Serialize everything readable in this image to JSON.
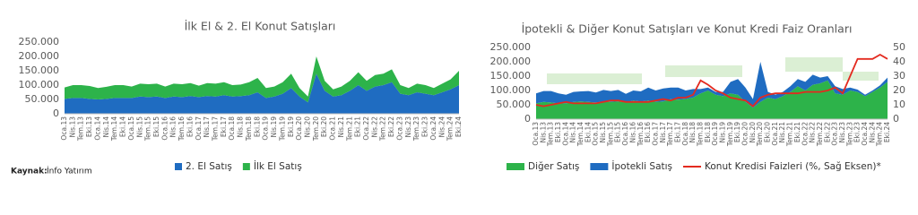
{
  "chart_data": [
    {
      "type": "area",
      "title": "İlk El & 2. El Konut Satışları",
      "stacked": true,
      "grid": false,
      "legend": "bottom",
      "categories": [
        "Oca.13",
        "Nis.13",
        "Tem.13",
        "Eki.13",
        "Oca.14",
        "Nis.14",
        "Tem.14",
        "Eki.14",
        "Oca.15",
        "Nis.15",
        "Tem.15",
        "Eki.15",
        "Oca.16",
        "Nis.16",
        "Tem.16",
        "Eki.16",
        "Oca.17",
        "Nis.17",
        "Tem.17",
        "Eki.17",
        "Oca.18",
        "Nis.18",
        "Tem.18",
        "Eki.18",
        "Oca.19",
        "Nis.19",
        "Tem.19",
        "Eki.19",
        "Oca.20",
        "Nis.20",
        "Tem.20",
        "Eki.20",
        "Oca.21",
        "Nis.21",
        "Tem.21",
        "Eki.21",
        "Oca.22",
        "Nis.22",
        "Tem.22",
        "Eki.22",
        "Oca.23",
        "Nis.23",
        "Tem.23",
        "Eki.23",
        "Oca.24",
        "Nis.24",
        "Tem.24",
        "Eki.24"
      ],
      "ylim": [
        0,
        250000
      ],
      "yticks": [
        0,
        {
          "value": 50000,
          "label": "50.000"
        },
        {
          "value": 100000,
          "label": "100.000"
        },
        {
          "value": 150000,
          "label": "150.000"
        },
        {
          "value": 200000,
          "label": "200.000"
        },
        {
          "value": 250000,
          "label": "250.000"
        }
      ],
      "series": [
        {
          "name": "2. El Satış",
          "color": "#1f6cc1",
          "values": [
            52000,
            55000,
            55000,
            52000,
            50000,
            52000,
            55000,
            55000,
            55000,
            60000,
            58000,
            60000,
            55000,
            60000,
            58000,
            62000,
            58000,
            62000,
            60000,
            65000,
            60000,
            62000,
            65000,
            75000,
            55000,
            60000,
            70000,
            90000,
            60000,
            40000,
            140000,
            80000,
            60000,
            65000,
            80000,
            100000,
            80000,
            95000,
            100000,
            110000,
            70000,
            65000,
            75000,
            70000,
            65000,
            75000,
            85000,
            100000
          ]
        },
        {
          "name": "İlk El Satış",
          "color": "#2db34a",
          "values": [
            40000,
            45000,
            45000,
            45000,
            40000,
            42000,
            45000,
            45000,
            40000,
            45000,
            45000,
            45000,
            40000,
            45000,
            45000,
            45000,
            40000,
            45000,
            45000,
            45000,
            40000,
            40000,
            45000,
            50000,
            35000,
            35000,
            40000,
            50000,
            30000,
            20000,
            60000,
            35000,
            25000,
            30000,
            35000,
            45000,
            35000,
            40000,
            40000,
            45000,
            30000,
            25000,
            30000,
            30000,
            25000,
            30000,
            35000,
            50000
          ]
        }
      ]
    },
    {
      "type": "area",
      "title": "İpotekli & Diğer Konut Satışları ve Konut Kredi Faiz Oranları",
      "stacked": true,
      "grid": false,
      "legend": "bottom",
      "categories": [
        "Oca.13",
        "Nis.13",
        "Tem.13",
        "Eki.13",
        "Oca.14",
        "Nis.14",
        "Tem.14",
        "Eki.14",
        "Oca.15",
        "Nis.15",
        "Tem.15",
        "Eki.15",
        "Oca.16",
        "Nis.16",
        "Tem.16",
        "Eki.16",
        "Oca.17",
        "Nis.17",
        "Tem.17",
        "Eki.17",
        "Oca.18",
        "Nis.18",
        "Tem.18",
        "Eki.18",
        "Oca.19",
        "Nis.19",
        "Tem.19",
        "Eki.19",
        "Oca.20",
        "Nis.20",
        "Tem.20",
        "Eki.20",
        "Oca.21",
        "Nis.21",
        "Tem.21",
        "Eki.21",
        "Oca.22",
        "Nis.22",
        "Tem.22",
        "Eki.22",
        "Oca.23",
        "Nis.23",
        "Tem.23",
        "Eki.23",
        "Oca.24",
        "Nis.24",
        "Tem.24",
        "Eki.24"
      ],
      "ylim": [
        0,
        250000
      ],
      "yticks": [
        0,
        {
          "value": 50000,
          "label": "50.000"
        },
        {
          "value": 100000,
          "label": "100.000"
        },
        {
          "value": 150000,
          "label": "150.000"
        },
        {
          "value": 200000,
          "label": "200.000"
        },
        {
          "value": 250000,
          "label": "250.000"
        }
      ],
      "y2lim": [
        0,
        50
      ],
      "y2ticks": [
        0,
        10,
        20,
        30,
        40,
        50
      ],
      "series": [
        {
          "name": "Diğer Satış",
          "color": "#2db34a",
          "values": [
            55000,
            60000,
            58000,
            55000,
            55000,
            60000,
            62000,
            60000,
            58000,
            62000,
            60000,
            62000,
            58000,
            65000,
            62000,
            65000,
            60000,
            62000,
            70000,
            68000,
            70000,
            75000,
            90000,
            100000,
            85000,
            80000,
            90000,
            85000,
            60000,
            40000,
            60000,
            75000,
            70000,
            80000,
            95000,
            115000,
            100000,
            120000,
            125000,
            135000,
            90000,
            85000,
            100000,
            95000,
            80000,
            95000,
            110000,
            130000
          ]
        },
        {
          "name": "İpotekli Satış",
          "color": "#1f6cc1",
          "values": [
            35000,
            38000,
            40000,
            35000,
            30000,
            35000,
            35000,
            38000,
            35000,
            40000,
            38000,
            40000,
            30000,
            35000,
            35000,
            45000,
            40000,
            45000,
            40000,
            42000,
            30000,
            30000,
            15000,
            10000,
            10000,
            15000,
            40000,
            55000,
            50000,
            30000,
            140000,
            20000,
            15000,
            15000,
            20000,
            25000,
            30000,
            35000,
            20000,
            15000,
            25000,
            20000,
            10000,
            8000,
            5000,
            5000,
            8000,
            15000
          ]
        },
        {
          "name": "Konut Kredisi Faizleri (%, Sağ Eksen)*",
          "color": "#e32a1f",
          "type": "line",
          "axis": "y2",
          "values": [
            10,
            9,
            10,
            11,
            12,
            11,
            11,
            11,
            11,
            12,
            13,
            13,
            12,
            12,
            12,
            12,
            13,
            14,
            13,
            15,
            15,
            17,
            27,
            24,
            20,
            18,
            15,
            14,
            13,
            9,
            15,
            17,
            18,
            18,
            18,
            18,
            19,
            19,
            19,
            20,
            22,
            18,
            30,
            42,
            42,
            42,
            45,
            42
          ]
        }
      ]
    }
  ],
  "source": {
    "label": "Kaynak:",
    "text": "İnfo Yatırım"
  }
}
